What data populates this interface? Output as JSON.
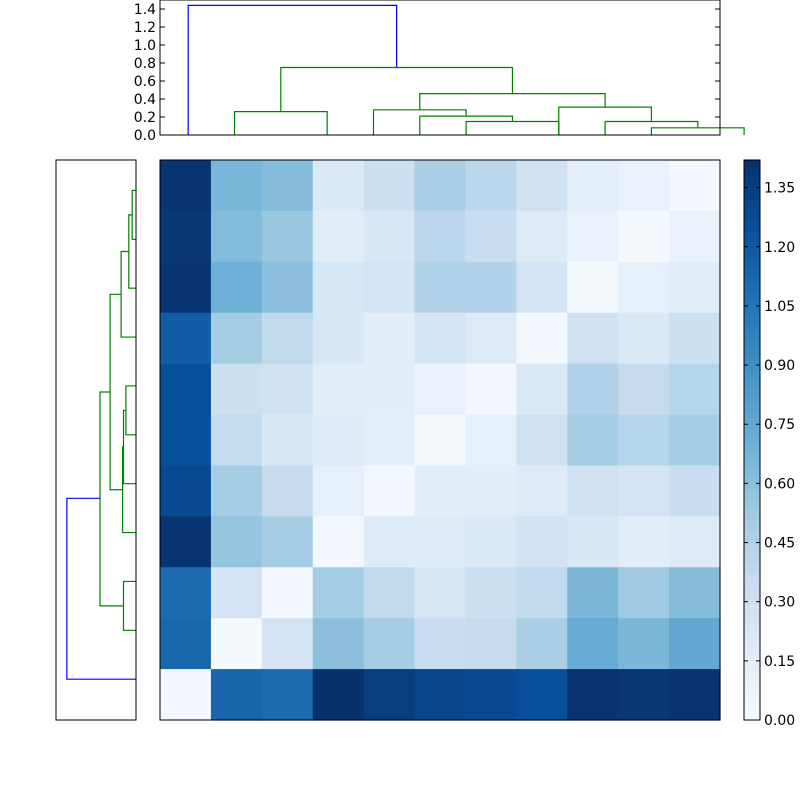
{
  "chart_data": {
    "type": "heatmap",
    "title": "",
    "colormap": "Blues",
    "colors": {
      "cluster_main": "#0000ff",
      "cluster_sub": "#008000",
      "frame": "#000000",
      "cmap_low": "#f7fbff",
      "cmap_high": "#08306b"
    },
    "top_dendrogram": {
      "ylim": [
        0,
        1.5
      ],
      "ticks": [
        "0.0",
        "0.2",
        "0.4",
        "0.6",
        "0.8",
        "1.0",
        "1.2",
        "1.4"
      ],
      "tick_values": [
        0,
        0.2,
        0.4,
        0.6,
        0.8,
        1.0,
        1.2,
        1.4
      ],
      "leaf_count": 11,
      "links": [
        {
          "color": "cluster_sub",
          "left": 1.5,
          "right": 3.5,
          "left_h": 0,
          "right_h": 0,
          "height": 0.26
        },
        {
          "color": "cluster_sub",
          "left": 6.5,
          "right": 8.5,
          "left_h": 0,
          "right_h": 0,
          "height": 0.15
        },
        {
          "color": "cluster_sub",
          "left": 5.5,
          "right": 7.5,
          "left_h": 0,
          "right_h": 0.15,
          "height": 0.21
        },
        {
          "color": "cluster_sub",
          "left": 4.5,
          "right": 6.5,
          "left_h": 0,
          "right_h": 0.21,
          "height": 0.28
        },
        {
          "color": "cluster_sub",
          "left": 10.5,
          "right": 12.5,
          "left_h": 0,
          "right_h": 0,
          "height": 0.08
        },
        {
          "color": "cluster_sub",
          "left": 9.5,
          "right": 11.5,
          "left_h": 0,
          "right_h": 0.08,
          "height": 0.15
        },
        {
          "color": "cluster_sub",
          "left": 8.5,
          "right": 10.5,
          "left_h": 0,
          "right_h": 0.15,
          "height": 0.31
        },
        {
          "color": "cluster_sub",
          "left": 5.5,
          "right": 9.5,
          "left_h": 0.28,
          "right_h": 0.31,
          "height": 0.46
        },
        {
          "color": "cluster_sub",
          "left": 2.5,
          "right": 7.5,
          "left_h": 0.26,
          "right_h": 0.46,
          "height": 0.75
        },
        {
          "color": "cluster_main",
          "left": 0.5,
          "right": 5.0,
          "left_h": 0,
          "right_h": 0.75,
          "height": 1.44
        }
      ]
    },
    "left_dendrogram": {
      "xlim": [
        0,
        1.5
      ],
      "leaf_count": 11,
      "links": [
        {
          "color": "cluster_sub",
          "a": 0.5,
          "b": 1.5,
          "a_h": 0,
          "b_h": 0,
          "height": 0.08
        },
        {
          "color": "cluster_sub",
          "a": 1.0,
          "b": 2.5,
          "a_h": 0.08,
          "b_h": 0,
          "height": 0.15
        },
        {
          "color": "cluster_sub",
          "a": 1.75,
          "b": 3.5,
          "a_h": 0.15,
          "b_h": 0,
          "height": 0.31
        },
        {
          "color": "cluster_sub",
          "a": 4.5,
          "b": 5.5,
          "a_h": 0,
          "b_h": 0,
          "height": 0.21
        },
        {
          "color": "cluster_sub",
          "a": 5.0,
          "b": 6.5,
          "a_h": 0.21,
          "b_h": 0,
          "height": 0.26
        },
        {
          "color": "cluster_sub",
          "a": 5.75,
          "b": 7.5,
          "a_h": 0.26,
          "b_h": 0,
          "height": 0.28
        },
        {
          "color": "cluster_sub",
          "a": 2.625,
          "b": 6.625,
          "a_h": 0.31,
          "b_h": 0.28,
          "height": 0.54
        },
        {
          "color": "cluster_sub",
          "a": 8.5,
          "b": 9.5,
          "a_h": 0,
          "b_h": 0,
          "height": 0.26
        },
        {
          "color": "cluster_sub",
          "a": 4.625,
          "b": 9.0,
          "a_h": 0.54,
          "b_h": 0.26,
          "height": 0.75
        },
        {
          "color": "cluster_main",
          "a": 6.8,
          "b": 10.5,
          "a_h": 0.75,
          "b_h": 0,
          "height": 1.44
        }
      ]
    },
    "matrix": [
      [
        1.4,
        0.66,
        0.62,
        0.2,
        0.3,
        0.48,
        0.4,
        0.28,
        0.13,
        0.1,
        0.03
      ],
      [
        1.38,
        0.63,
        0.55,
        0.15,
        0.22,
        0.4,
        0.33,
        0.18,
        0.1,
        0.02,
        0.1
      ],
      [
        1.4,
        0.7,
        0.6,
        0.22,
        0.25,
        0.45,
        0.45,
        0.25,
        0.02,
        0.12,
        0.15
      ],
      [
        1.18,
        0.5,
        0.38,
        0.22,
        0.15,
        0.25,
        0.18,
        0.03,
        0.28,
        0.2,
        0.3
      ],
      [
        1.25,
        0.3,
        0.28,
        0.15,
        0.15,
        0.1,
        0.03,
        0.2,
        0.45,
        0.35,
        0.42
      ],
      [
        1.25,
        0.36,
        0.22,
        0.18,
        0.13,
        0.02,
        0.12,
        0.28,
        0.5,
        0.42,
        0.5
      ],
      [
        1.28,
        0.5,
        0.35,
        0.12,
        0.03,
        0.15,
        0.15,
        0.18,
        0.28,
        0.25,
        0.32
      ],
      [
        1.4,
        0.56,
        0.5,
        0.03,
        0.17,
        0.18,
        0.2,
        0.27,
        0.22,
        0.15,
        0.18
      ],
      [
        1.1,
        0.25,
        0.03,
        0.5,
        0.38,
        0.22,
        0.3,
        0.38,
        0.65,
        0.53,
        0.62
      ],
      [
        1.12,
        0.02,
        0.25,
        0.6,
        0.5,
        0.33,
        0.35,
        0.48,
        0.73,
        0.65,
        0.75
      ],
      [
        0.03,
        1.13,
        1.1,
        1.41,
        1.35,
        1.3,
        1.28,
        1.25,
        1.4,
        1.38,
        1.4
      ]
    ],
    "colorbar": {
      "range": [
        0,
        1.42
      ],
      "ticks": [
        "0.00",
        "0.15",
        "0.30",
        "0.45",
        "0.60",
        "0.75",
        "0.90",
        "1.05",
        "1.20",
        "1.35"
      ],
      "tick_values": [
        0,
        0.15,
        0.3,
        0.45,
        0.6,
        0.75,
        0.9,
        1.05,
        1.2,
        1.35
      ]
    }
  }
}
